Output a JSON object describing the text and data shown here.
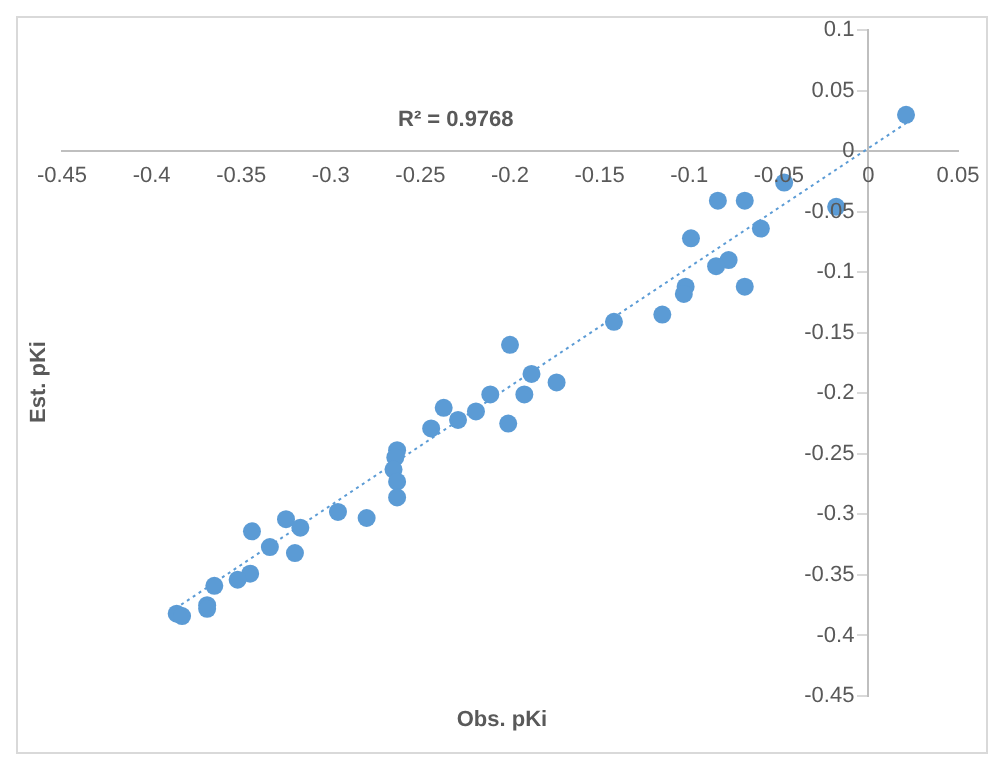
{
  "chart_data": {
    "type": "scatter",
    "xlabel": "Obs. pKi",
    "ylabel": "Est. pKi",
    "annotations": [
      "R² = 0.9768"
    ],
    "xlim": [
      -0.45,
      0.05
    ],
    "xticks": [
      -0.45,
      -0.4,
      -0.35,
      -0.3,
      -0.25,
      -0.2,
      -0.15,
      -0.1,
      -0.05,
      0,
      0.05
    ],
    "ylim": [
      -0.45,
      0.1
    ],
    "yticks": [
      -0.45,
      -0.4,
      -0.35,
      -0.3,
      -0.25,
      -0.2,
      -0.15,
      -0.1,
      -0.05,
      0,
      0.05,
      0.1
    ],
    "grid": false,
    "marker": "circle",
    "series": [
      {
        "color": "#5b9bd5",
        "x": [
          0.021,
          -0.047,
          -0.018,
          -0.084,
          -0.069,
          -0.06,
          -0.099,
          -0.078,
          -0.085,
          -0.069,
          -0.102,
          -0.103,
          -0.115,
          -0.142,
          -0.2,
          -0.188,
          -0.174,
          -0.192,
          -0.211,
          -0.237,
          -0.219,
          -0.229,
          -0.244,
          -0.201,
          -0.263,
          -0.264,
          -0.265,
          -0.263,
          -0.263,
          -0.28,
          -0.296,
          -0.344,
          -0.325,
          -0.317,
          -0.334,
          -0.32,
          -0.365,
          -0.345,
          -0.352,
          -0.369,
          -0.369,
          -0.386,
          -0.383
        ],
        "values": [
          0.03,
          -0.026,
          -0.046,
          -0.041,
          -0.041,
          -0.064,
          -0.072,
          -0.09,
          -0.095,
          -0.112,
          -0.112,
          -0.118,
          -0.135,
          -0.141,
          -0.16,
          -0.184,
          -0.191,
          -0.201,
          -0.201,
          -0.212,
          -0.215,
          -0.222,
          -0.229,
          -0.225,
          -0.247,
          -0.253,
          -0.263,
          -0.273,
          -0.286,
          -0.303,
          -0.298,
          -0.314,
          -0.304,
          -0.311,
          -0.327,
          -0.332,
          -0.359,
          -0.349,
          -0.354,
          -0.375,
          -0.378,
          -0.382,
          -0.384
        ]
      },
      {
        "type": "line",
        "color": "#5b9bd5",
        "line_style": "dotted",
        "marker": "none",
        "x": [
          -0.39,
          0.022
        ],
        "values": [
          -0.381,
          0.024
        ]
      }
    ]
  }
}
